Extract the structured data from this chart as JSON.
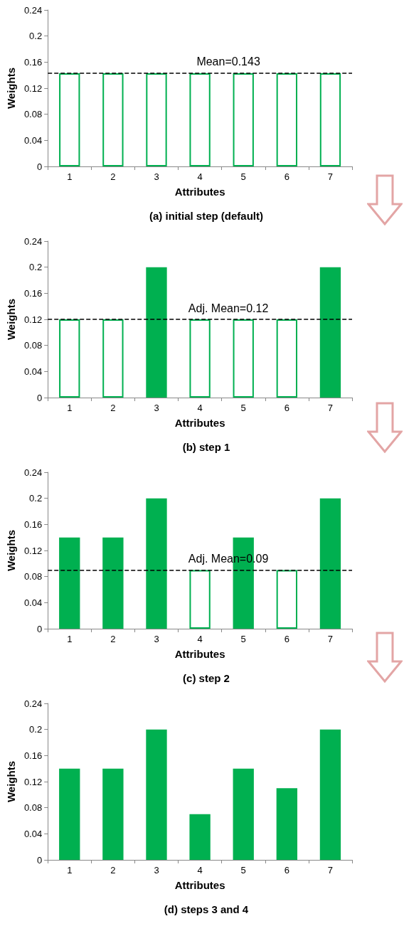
{
  "chart_data": [
    {
      "type": "bar",
      "title": "(a) initial step (default)",
      "xlabel": "Attributes",
      "ylabel": "Weights",
      "categories": [
        "1",
        "2",
        "3",
        "4",
        "5",
        "6",
        "7"
      ],
      "values": [
        0.143,
        0.143,
        0.143,
        0.143,
        0.143,
        0.143,
        0.143
      ],
      "color": "#00b050",
      "colors": [
        "#ffffff",
        "#ffffff",
        "#ffffff",
        "#ffffff",
        "#ffffff",
        "#ffffff",
        "#ffffff"
      ],
      "ylim": [
        0,
        0.24
      ],
      "yticks": [
        0,
        0.04,
        0.08,
        0.12,
        0.16,
        0.2,
        0.24
      ],
      "grid": false,
      "ref_lines": [
        {
          "axis": "y",
          "value": 0.143,
          "label": "Mean=0.143",
          "color": "#000000",
          "line_style": "dashed"
        }
      ]
    },
    {
      "type": "bar",
      "title": "(b) step 1",
      "xlabel": "Attributes",
      "ylabel": "Weights",
      "categories": [
        "1",
        "2",
        "3",
        "4",
        "5",
        "6",
        "7"
      ],
      "values": [
        0.12,
        0.12,
        0.2,
        0.12,
        0.12,
        0.12,
        0.2
      ],
      "color": "#00b050",
      "colors": [
        "#ffffff",
        "#ffffff",
        "#00b050",
        "#ffffff",
        "#ffffff",
        "#ffffff",
        "#00b050"
      ],
      "ylim": [
        0,
        0.24
      ],
      "yticks": [
        0,
        0.04,
        0.08,
        0.12,
        0.16,
        0.2,
        0.24
      ],
      "grid": false,
      "ref_lines": [
        {
          "axis": "y",
          "value": 0.12,
          "label": "Adj. Mean=0.12",
          "color": "#000000",
          "line_style": "dashed"
        }
      ]
    },
    {
      "type": "bar",
      "title": "(c) step 2",
      "xlabel": "Attributes",
      "ylabel": "Weights",
      "categories": [
        "1",
        "2",
        "3",
        "4",
        "5",
        "6",
        "7"
      ],
      "values": [
        0.14,
        0.14,
        0.2,
        0.09,
        0.14,
        0.09,
        0.2
      ],
      "color": "#00b050",
      "colors": [
        "#00b050",
        "#00b050",
        "#00b050",
        "#ffffff",
        "#00b050",
        "#ffffff",
        "#00b050"
      ],
      "ylim": [
        0,
        0.24
      ],
      "yticks": [
        0,
        0.04,
        0.08,
        0.12,
        0.16,
        0.2,
        0.24
      ],
      "grid": false,
      "ref_lines": [
        {
          "axis": "y",
          "value": 0.09,
          "label": "Adj. Mean=0.09",
          "color": "#000000",
          "line_style": "dashed"
        }
      ]
    },
    {
      "type": "bar",
      "title": "(d) steps 3 and 4",
      "xlabel": "Attributes",
      "ylabel": "Weights",
      "categories": [
        "1",
        "2",
        "3",
        "4",
        "5",
        "6",
        "7"
      ],
      "values": [
        0.14,
        0.14,
        0.2,
        0.07,
        0.14,
        0.11,
        0.2
      ],
      "color": "#00b050",
      "ylim": [
        0,
        0.24
      ],
      "yticks": [
        0,
        0.04,
        0.08,
        0.12,
        0.16,
        0.2,
        0.24
      ],
      "grid": false
    }
  ]
}
